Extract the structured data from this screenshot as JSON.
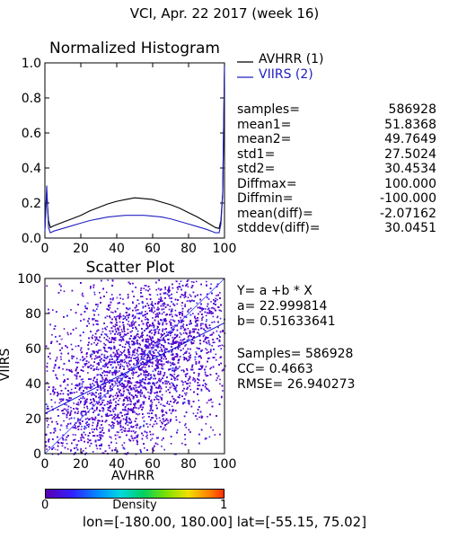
{
  "title": "VCI,  Apr. 22 2017 (week 16)",
  "footer": "lon=[-180.00, 180.00] lat=[-55.15, 75.02]",
  "colors": {
    "series1": "#000000",
    "series2": "#2020c0",
    "fit_line": "#1010d0"
  },
  "chart_data": [
    {
      "type": "line",
      "title": "Normalized Histogram",
      "xlim": [
        0,
        100
      ],
      "ylim": [
        0,
        1.0
      ],
      "xticks": [
        "0",
        "20",
        "40",
        "60",
        "80",
        "100"
      ],
      "yticks": [
        "0.0",
        "0.2",
        "0.4",
        "0.6",
        "0.8",
        "1.0"
      ],
      "x": [
        0,
        1,
        2,
        3,
        5,
        10,
        15,
        20,
        25,
        30,
        35,
        40,
        45,
        50,
        55,
        60,
        65,
        70,
        75,
        80,
        85,
        90,
        95,
        97,
        98,
        99,
        100
      ],
      "series": [
        {
          "name": "AVHRR (1)",
          "values": [
            0.05,
            0.26,
            0.1,
            0.06,
            0.07,
            0.09,
            0.11,
            0.13,
            0.155,
            0.175,
            0.195,
            0.21,
            0.22,
            0.23,
            0.225,
            0.22,
            0.205,
            0.19,
            0.17,
            0.145,
            0.12,
            0.09,
            0.06,
            0.055,
            0.1,
            0.26,
            0.99
          ]
        },
        {
          "name": "VIIRS (2)",
          "values": [
            0.04,
            0.3,
            0.06,
            0.03,
            0.04,
            0.055,
            0.07,
            0.085,
            0.1,
            0.11,
            0.12,
            0.125,
            0.13,
            0.13,
            0.13,
            0.125,
            0.12,
            0.11,
            0.095,
            0.08,
            0.065,
            0.05,
            0.03,
            0.03,
            0.08,
            0.25,
            0.98
          ]
        }
      ]
    },
    {
      "type": "scatter",
      "title": "Scatter Plot",
      "xlabel": "AVHRR",
      "ylabel": "VIIRS",
      "xlim": [
        0,
        100
      ],
      "ylim": [
        0,
        100
      ],
      "xticks": [
        "0",
        "20",
        "40",
        "60",
        "80",
        "100"
      ],
      "yticks": [
        "0",
        "20",
        "40",
        "60",
        "80",
        "100"
      ],
      "fit": {
        "a": 22.999814,
        "b": 0.51633641
      },
      "colorbar": {
        "label": "Density",
        "min": "0",
        "max": "1"
      }
    }
  ],
  "stats": [
    {
      "label": "samples=",
      "value": "586928"
    },
    {
      "label": "mean1=",
      "value": "51.8368"
    },
    {
      "label": "mean2=",
      "value": "49.7649"
    },
    {
      "label": "std1=",
      "value": "27.5024"
    },
    {
      "label": "std2=",
      "value": "30.4534"
    },
    {
      "label": "Diffmax=",
      "value": "100.000"
    },
    {
      "label": "Diffmin=",
      "value": "-100.000"
    },
    {
      "label": "mean(diff)=",
      "value": "-2.07162"
    },
    {
      "label": "stddev(diff)=",
      "value": "30.0451"
    }
  ],
  "fit_text": {
    "equation": "Y= a +b * X",
    "a_line": "a= 22.999814",
    "b_line": "b= 0.51633641",
    "samples_line": "Samples= 586928",
    "cc_line": "CC=  0.4663",
    "rmse_line": "RMSE= 26.940273"
  }
}
